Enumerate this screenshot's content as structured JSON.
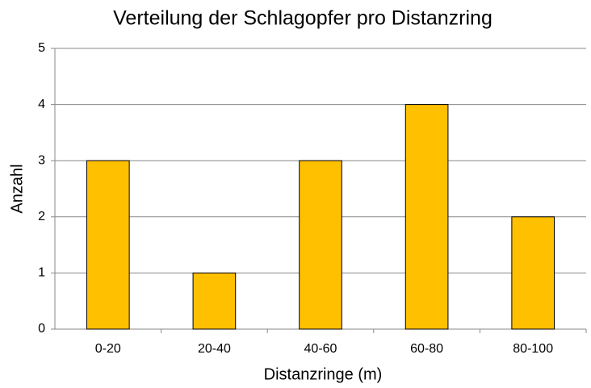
{
  "chart_data": {
    "type": "bar",
    "title": "Verteilung der Schlagopfer pro Distanzring",
    "x_label": "Distanzringe  (m)",
    "y_label": "Anzahl",
    "categories": [
      "0-20",
      "20-40",
      "40-60",
      "60-80",
      "80-100"
    ],
    "values": [
      3,
      1,
      3,
      4,
      2
    ],
    "color": "#ffc000",
    "ylim": [
      0,
      5
    ],
    "yticks": [
      0,
      1,
      2,
      3,
      4,
      5
    ],
    "grid": true
  }
}
